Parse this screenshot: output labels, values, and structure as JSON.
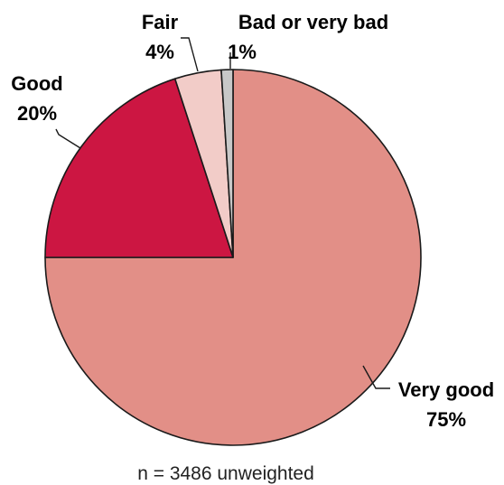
{
  "chart_data": {
    "type": "pie",
    "title": "",
    "start": "12 o'clock, clockwise",
    "slices": [
      {
        "label": "Very good",
        "value": 75,
        "value_label": "75%",
        "color": "#e28f87"
      },
      {
        "label": "Good",
        "value": 20,
        "value_label": "20%",
        "color": "#cc1642"
      },
      {
        "label": "Fair",
        "value": 4,
        "value_label": "4%",
        "color": "#f2ccc8"
      },
      {
        "label": "Bad or very bad",
        "value": 1,
        "value_label": "1%",
        "color": "#c8c8c8"
      }
    ],
    "legend": "none",
    "note": "n = 3486 unweighted"
  }
}
